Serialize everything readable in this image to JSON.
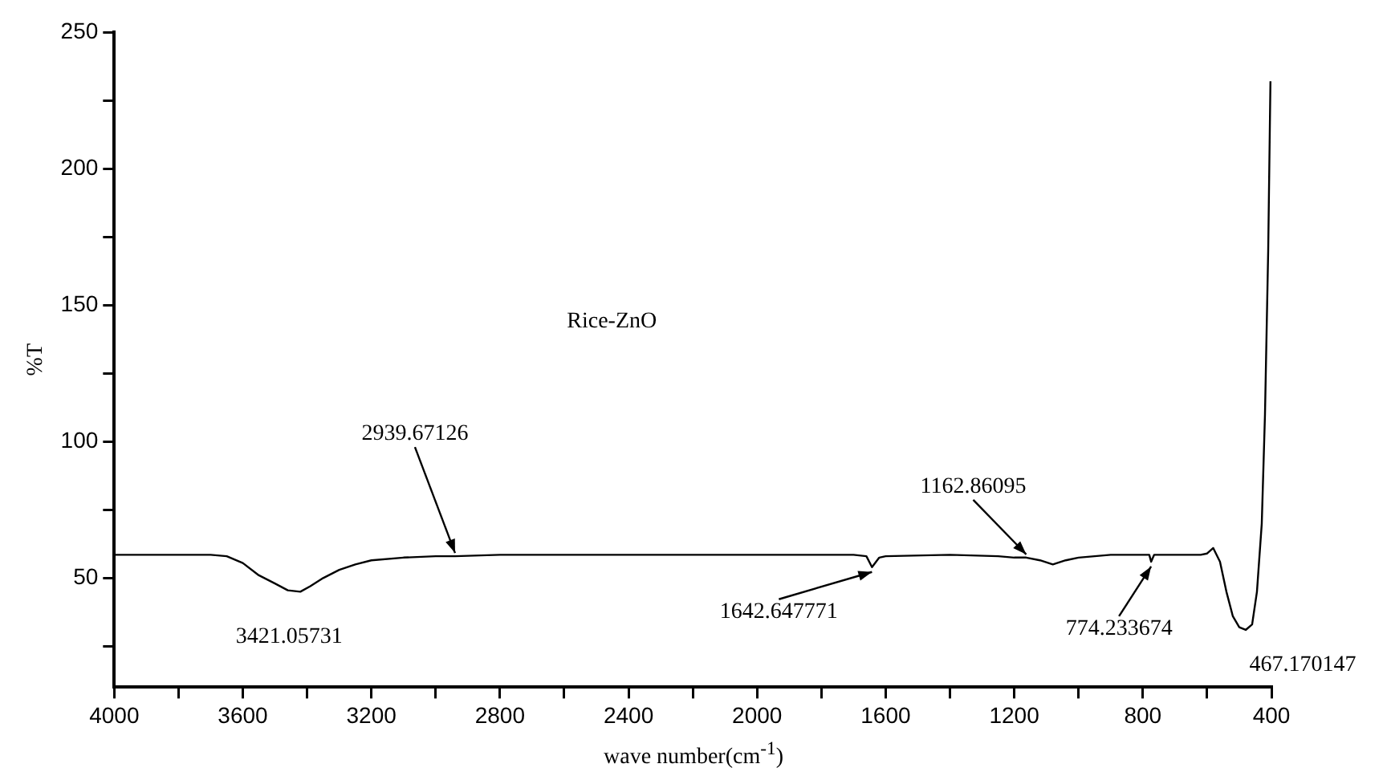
{
  "chart_data": {
    "type": "line",
    "title": "Rice-ZnO",
    "xlabel": "wave number(cm$^{-1}$)",
    "ylabel": "%T",
    "xlim": [
      4000,
      400
    ],
    "xticks": [
      4000,
      {
        "value": 3800,
        "label": null
      },
      3600,
      {
        "value": 3400,
        "label": null
      },
      3200,
      {
        "value": 3000,
        "label": null
      },
      2800,
      {
        "value": 2600,
        "label": null
      },
      2400,
      {
        "value": 2200,
        "label": null
      },
      2000,
      {
        "value": 1800,
        "label": null
      },
      1600,
      {
        "value": 1400,
        "label": null
      },
      1200,
      {
        "value": 1000,
        "label": null
      },
      800,
      {
        "value": 600,
        "label": null
      },
      400
    ],
    "ylim": [
      10,
      250
    ],
    "yticks": [
      {
        "value": 25,
        "label": null
      },
      50,
      {
        "value": 75,
        "label": null
      },
      100,
      {
        "value": 125,
        "label": null
      },
      150,
      {
        "value": 175,
        "label": null
      },
      200,
      {
        "value": 225,
        "label": null
      },
      250
    ],
    "marker": "none",
    "series": [
      {
        "color": "#000000",
        "x": [
          4000,
          3700,
          3650,
          3600,
          3550,
          3500,
          3460,
          3421,
          3390,
          3350,
          3300,
          3250,
          3200,
          3100,
          3000,
          2939.67,
          2800,
          2400,
          2000,
          1700,
          1660,
          1642.6,
          1620,
          1600,
          1400,
          1250,
          1200,
          1162.86,
          1120,
          1080,
          1040,
          1000,
          900,
          800,
          780,
          774.2,
          765,
          700,
          620,
          600,
          581,
          560,
          540,
          520,
          500,
          480,
          460,
          445,
          430,
          420,
          410,
          403
        ],
        "values": [
          58.5,
          58.5,
          58,
          55.5,
          51,
          48,
          45.5,
          45,
          47,
          50,
          53,
          55,
          56.5,
          57.5,
          58,
          58,
          58.5,
          58.5,
          58.5,
          58.5,
          58,
          54,
          57.5,
          58,
          58.5,
          58,
          57.5,
          57.5,
          56.5,
          55,
          56.5,
          57.5,
          58.5,
          58.5,
          58.5,
          56,
          58.5,
          58.5,
          58.5,
          59,
          61,
          56,
          45,
          36,
          32,
          31,
          33,
          45,
          70,
          110,
          170,
          232
        ]
      }
    ],
    "annotations": [
      {
        "text": "3421.05731",
        "x": 3421.05731,
        "y": 45
      },
      {
        "text": "2939.67126",
        "x": 2939.67126,
        "y": 58
      },
      {
        "text": "1642.647771",
        "x": 1642.647771,
        "y": 54
      },
      {
        "text": "1162.86095",
        "x": 1162.86095,
        "y": 57.5
      },
      {
        "text": "774.233674",
        "x": 774.233674,
        "y": 56
      },
      {
        "text": "467.170147",
        "x": 467.170147,
        "y": 31
      }
    ]
  }
}
